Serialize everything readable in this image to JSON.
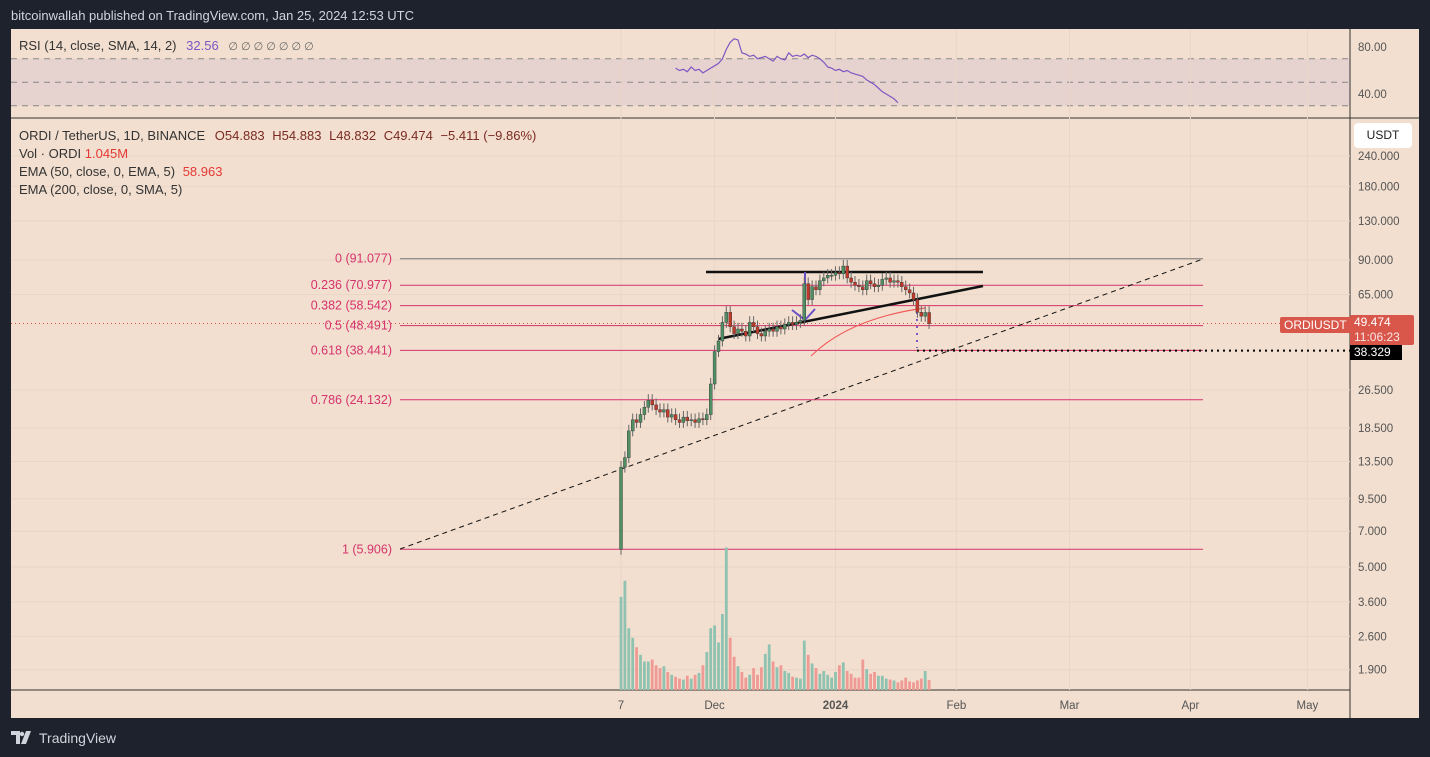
{
  "header": {
    "published": "bitcoinwallah published on TradingView.com, Jan 25, 2024 12:53 UTC"
  },
  "rsi": {
    "label": "RSI (14, close, SMA, 14, 2)",
    "value": "32.56",
    "extras": "∅ ∅ ∅ ∅ ∅ ∅ ∅",
    "axis": [
      "80.00",
      "40.00"
    ]
  },
  "legend": {
    "symbol": "ORDI / TetherUS, 1D, BINANCE",
    "o": "O54.883",
    "h": "H54.883",
    "l": "L48.832",
    "c": "C49.474",
    "chg": "−5.411 (−9.86%)",
    "vol_label": "Vol · ORDI",
    "vol_value": "1.045M",
    "ema50_label": "EMA (50, close, 0, EMA, 5)",
    "ema50_value": "58.963",
    "ema200_label": "EMA (200, close, 0, SMA, 5)"
  },
  "currency_button": "USDT",
  "price_tag": {
    "symbol": "ORDIUSDT",
    "price": "49.474",
    "countdown": "11:06:23",
    "target": "38.329"
  },
  "colors": {
    "up": "#4f8f63",
    "down": "#c0392b",
    "fib": "#d6336c",
    "tag": "#d9574a"
  },
  "chart_data": {
    "type": "candlestick",
    "title": "ORDI / TetherUS, 1D, BINANCE",
    "yscale": "log",
    "price_ticks": [
      "240.000",
      "180.000",
      "130.000",
      "90.000",
      "65.000",
      "26.500",
      "18.500",
      "13.500",
      "9.500",
      "7.000",
      "5.000",
      "3.600",
      "2.600",
      "1.900"
    ],
    "price_tick_values": [
      240,
      180,
      130,
      90,
      65,
      26.5,
      18.5,
      13.5,
      9.5,
      7,
      5,
      3.6,
      2.6,
      1.9
    ],
    "time_ticks": [
      {
        "label": "7",
        "day": 0
      },
      {
        "label": "Dec",
        "day": 24
      },
      {
        "label": "2024",
        "day": 55
      },
      {
        "label": "Feb",
        "day": 86
      },
      {
        "label": "Mar",
        "day": 115
      },
      {
        "label": "Apr",
        "day": 146
      },
      {
        "label": "May",
        "day": 176
      }
    ],
    "start_open": 5.906,
    "closes": [
      12.8,
      14,
      18,
      20,
      19.5,
      21,
      22.5,
      24,
      23,
      22,
      21.5,
      22,
      20.5,
      21,
      20,
      19.5,
      20.5,
      19.8,
      20,
      19.5,
      20.2,
      20,
      21,
      28,
      38,
      42,
      50,
      55,
      48,
      45,
      47,
      46,
      44,
      50,
      48,
      45,
      44,
      46,
      47,
      46,
      48,
      47,
      49,
      50,
      49,
      50,
      51,
      72,
      62,
      70,
      68,
      74,
      76,
      78,
      78,
      80,
      79,
      85,
      76,
      73,
      71,
      70,
      68,
      74,
      72,
      70,
      71,
      75,
      76,
      73,
      74,
      73,
      70,
      68,
      66,
      62,
      55,
      53,
      54.9,
      49.474
    ],
    "volumes": [
      9.8,
      11.5,
      6.5,
      5.5,
      4.5,
      3.7,
      3,
      3,
      3.2,
      2.6,
      2.3,
      2.5,
      1.9,
      1.6,
      1.4,
      1.2,
      1.1,
      1.5,
      1.2,
      1.6,
      1.8,
      2.6,
      4,
      6.5,
      6.8,
      5,
      8,
      15,
      5.5,
      3.5,
      2.5,
      1.9,
      1.3,
      1.6,
      2.3,
      1.6,
      2.4,
      3.8,
      4.8,
      3,
      2.4,
      2.6,
      2,
      1.8,
      1.4,
      1.3,
      1.2,
      5.2,
      3.7,
      2.8,
      2.3,
      1.7,
      2,
      1.6,
      1.3,
      1.9,
      2.6,
      2.9,
      2,
      1.7,
      1.3,
      1.3,
      3.2,
      2.2,
      1.7,
      1.9,
      1.5,
      1.5,
      1.2,
      1.1,
      1,
      0.8,
      1,
      1.3,
      0.9,
      0.8,
      1,
      1.2,
      2,
      1.045
    ],
    "rsi_start_day": 14,
    "rsi": [
      62,
      60,
      61,
      59,
      63,
      60,
      61,
      58,
      60,
      62,
      64,
      66,
      70,
      78,
      84,
      87,
      86,
      75,
      74,
      72,
      73,
      70,
      71,
      72,
      70,
      68,
      72,
      70,
      69,
      75,
      72,
      73,
      72,
      74,
      71,
      73,
      72,
      70,
      67,
      63,
      62,
      60,
      61,
      59,
      60,
      58,
      57,
      56,
      55,
      52,
      50,
      48,
      45,
      42,
      40,
      38,
      36,
      32.56
    ],
    "fib_levels": [
      {
        "ratio": "0",
        "price": 91.077,
        "label": "0 (91.077)"
      },
      {
        "ratio": "0.236",
        "price": 70.977,
        "label": "0.236 (70.977)"
      },
      {
        "ratio": "0.382",
        "price": 58.542,
        "label": "0.382 (58.542)"
      },
      {
        "ratio": "0.5",
        "price": 48.491,
        "label": "0.5 (48.491)"
      },
      {
        "ratio": "0.618",
        "price": 38.441,
        "label": "0.618 (38.441)"
      },
      {
        "ratio": "0.786",
        "price": 24.132,
        "label": "0.786 (24.132)"
      },
      {
        "ratio": "1",
        "price": 5.906,
        "label": "1 (5.906)"
      }
    ],
    "current_price": 49.474,
    "target_price": 38.329
  }
}
